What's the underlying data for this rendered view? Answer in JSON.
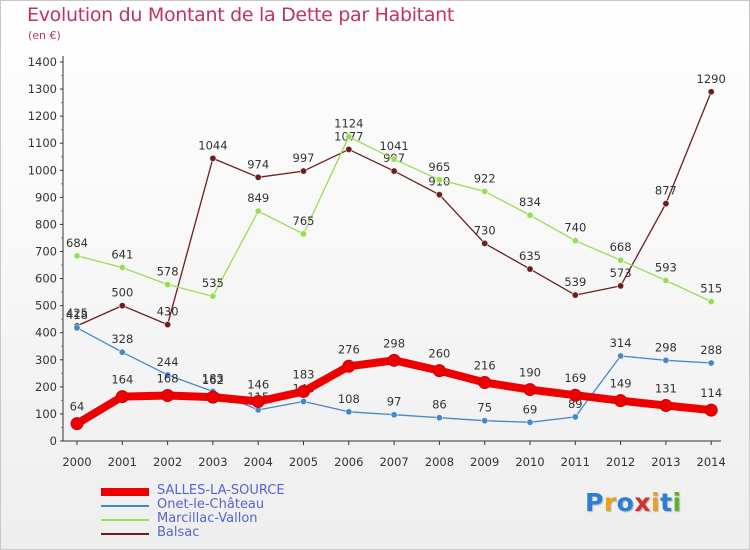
{
  "chart_data": {
    "type": "line",
    "title": "Evolution du Montant de la Dette par Habitant",
    "subtitle": "(en €)",
    "xlabel": "",
    "ylabel": "",
    "x": [
      "2000",
      "2001",
      "2002",
      "2003",
      "2004",
      "2005",
      "2006",
      "2007",
      "2008",
      "2009",
      "2010",
      "2011",
      "2012",
      "2013",
      "2014"
    ],
    "ylim": [
      0,
      1400
    ],
    "yticks": [
      0,
      100,
      200,
      300,
      400,
      500,
      600,
      700,
      800,
      900,
      1000,
      1100,
      1200,
      1300,
      1400
    ],
    "grid": false,
    "legend_position": "bottom-left",
    "series": [
      {
        "name": "Balsac",
        "color": "#6b1e1e",
        "values": [
          425,
          500,
          430,
          1044,
          974,
          997,
          1077,
          997,
          910,
          730,
          635,
          539,
          573,
          877,
          1290
        ]
      },
      {
        "name": "Marcillac-Vallon",
        "color": "#99dd55",
        "values": [
          684,
          641,
          578,
          535,
          849,
          765,
          1124,
          1041,
          965,
          922,
          834,
          740,
          668,
          593,
          515
        ]
      },
      {
        "name": "Onet-le-Château",
        "color": "#4488cc",
        "values": [
          418,
          328,
          244,
          183,
          115,
          146,
          108,
          97,
          86,
          75,
          69,
          89,
          314,
          298,
          288
        ]
      },
      {
        "name": "SALLES-LA-SOURCE",
        "color": "#ee0000",
        "values": [
          64,
          164,
          168,
          162,
          146,
          183,
          276,
          298,
          260,
          216,
          190,
          169,
          149,
          131,
          114
        ]
      }
    ]
  },
  "legend": [
    {
      "label": "SALLES-LA-SOURCE",
      "color": "#ee0000"
    },
    {
      "label": "Onet-le-Château",
      "color": "#4488cc"
    },
    {
      "label": "Marcillac-Vallon",
      "color": "#99dd55"
    },
    {
      "label": "Balsac",
      "color": "#6b1e1e"
    }
  ],
  "brand": {
    "text": "Proxiti",
    "colors": [
      "#2a7fd4",
      "#e8a020",
      "#2a7fd4",
      "#d13030",
      "#e8a020",
      "#2a7fd4",
      "#60b030"
    ]
  }
}
